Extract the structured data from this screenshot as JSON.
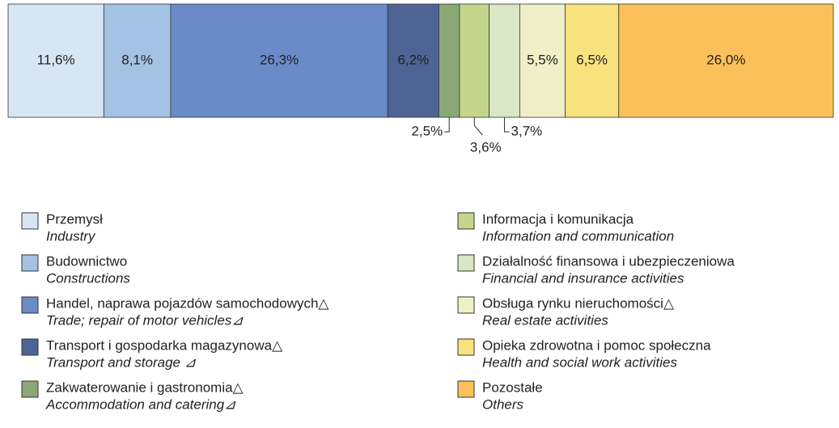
{
  "chart_data": {
    "type": "stacked-bar-100",
    "xlim": [
      0,
      100
    ],
    "series": [
      {
        "name": "Przemysł",
        "name_en": "Industry",
        "color": "#d6e6f5",
        "values": [
          11.6
        ],
        "value_labels": [
          "11,6%"
        ]
      },
      {
        "name": "Budownictwo",
        "name_en": "Constructions",
        "color": "#a4c2e4",
        "values": [
          8.1
        ],
        "value_labels": [
          "8,1%"
        ]
      },
      {
        "name": "Handel, naprawa pojazdów samochodowych△",
        "name_en": "Trade; repair of motor vehicles⊿",
        "color": "#6a8bc8",
        "values": [
          26.3
        ],
        "value_labels": [
          "26,3%"
        ]
      },
      {
        "name": "Transport i gospodarka magazynowa△",
        "name_en": "Transport and storage ⊿",
        "color": "#4e6494",
        "values": [
          6.2
        ],
        "value_labels": [
          "6,2%"
        ]
      },
      {
        "name": "Zakwaterowanie i gastronomia△",
        "name_en": "Accommodation and catering⊿",
        "color": "#8aa876",
        "values": [
          2.5
        ],
        "value_labels": [
          "2,5%"
        ]
      },
      {
        "name": "Informacja i komunikacja",
        "name_en": "Information and communication",
        "color": "#c5d68c",
        "values": [
          3.6
        ],
        "value_labels": [
          "3,6%"
        ]
      },
      {
        "name": "Działalność finansowa i ubezpieczeniowa",
        "name_en": "Financial and insurance activities",
        "color": "#dae6c4",
        "values": [
          3.7
        ],
        "value_labels": [
          "3,7%"
        ]
      },
      {
        "name": "Obsługa rynku nieruchomości△",
        "name_en": "Real estate activities",
        "color": "#f0f0c8",
        "values": [
          5.5
        ],
        "value_labels": [
          "5,5%"
        ]
      },
      {
        "name": "Opieka zdrowotna i pomoc społeczna",
        "name_en": "Health and social work activities",
        "color": "#f7e27d",
        "values": [
          6.5
        ],
        "value_labels": [
          "6,5%"
        ]
      },
      {
        "name": "Pozostałe",
        "name_en": "Others",
        "color": "#fcc05a",
        "values": [
          26.0
        ],
        "value_labels": [
          "26,0%"
        ]
      }
    ]
  }
}
